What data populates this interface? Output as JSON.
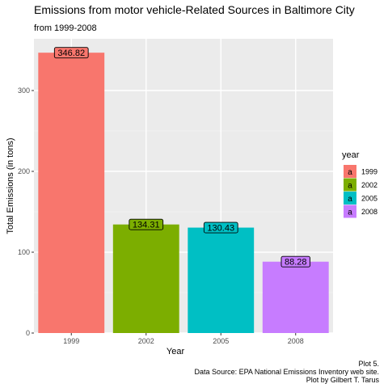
{
  "chart_data": {
    "type": "bar",
    "title": "Emissions from motor vehicle-Related Sources in Baltimore City",
    "subtitle": "from 1999-2008",
    "xlabel": "Year",
    "ylabel": "Total Emissions (in tons)",
    "categories": [
      "1999",
      "2002",
      "2005",
      "2008"
    ],
    "values": [
      346.82,
      134.31,
      130.43,
      88.28
    ],
    "value_labels": [
      "346.82",
      "134.31",
      "130.43",
      "88.28"
    ],
    "ylim": [
      0,
      364
    ],
    "yticks": [
      0,
      100,
      200,
      300
    ],
    "ytick_labels": [
      "0",
      "100",
      "200",
      "300"
    ],
    "colors": [
      "#F8766D",
      "#7CAE00",
      "#00BFC4",
      "#C77CFF"
    ],
    "grid": true,
    "legend": {
      "title": "year",
      "position": "right",
      "key_glyph": "a",
      "entries": [
        "1999",
        "2002",
        "2005",
        "2008"
      ]
    },
    "caption": [
      "Plot 5.",
      "Data Source: EPA National Emissions Inventory web site.",
      "Plot by Gilbert T. Tarus"
    ]
  }
}
